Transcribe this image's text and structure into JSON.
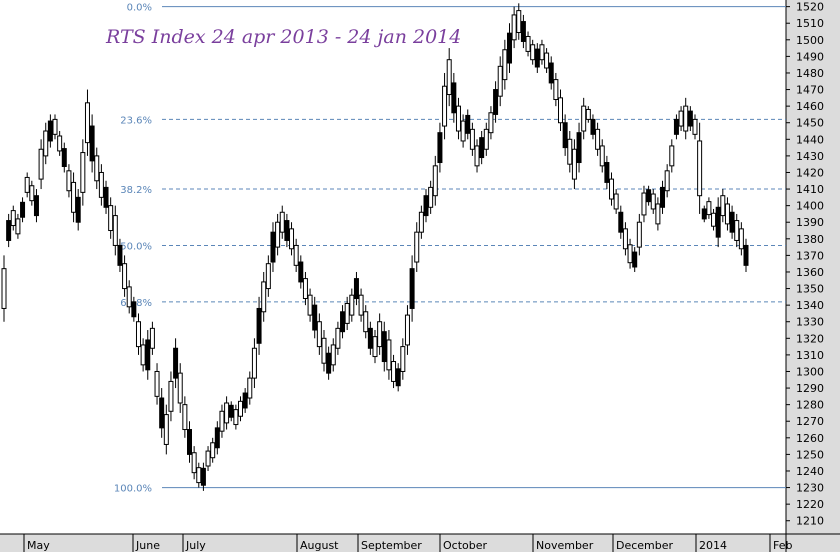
{
  "chart_data": {
    "type": "candlestick",
    "title": "RTS Index 24 apr 2013 - 24 jan 2014",
    "colors": {
      "background": "#ffffff",
      "axis_panel": "#dcdcdc",
      "candle": "#000000",
      "fib_line": "#5b86b8",
      "title": "#7a3f9d"
    },
    "y_axis": {
      "ylim": [
        1202,
        1524
      ],
      "ticks": [
        1210,
        1220,
        1230,
        1240,
        1250,
        1260,
        1270,
        1280,
        1290,
        1300,
        1310,
        1320,
        1330,
        1340,
        1350,
        1360,
        1370,
        1380,
        1390,
        1400,
        1410,
        1420,
        1430,
        1440,
        1450,
        1460,
        1470,
        1480,
        1490,
        1500,
        1510,
        1520
      ],
      "position": "right"
    },
    "x_axis": {
      "month_labels": [
        "May",
        "June",
        "July",
        "August",
        "September",
        "October",
        "November",
        "December",
        "2014",
        "Feb"
      ]
    },
    "fibonacci_levels": [
      {
        "label": "0.0%",
        "value": 1520
      },
      {
        "label": "23.6%",
        "value": 1452
      },
      {
        "label": "38.2%",
        "value": 1410
      },
      {
        "label": "50.0%",
        "value": 1376
      },
      {
        "label": "61.8%",
        "value": 1342
      },
      {
        "label": "100.0%",
        "value": 1230
      }
    ],
    "series": [
      {
        "points": [
          [
            1330,
            1370
          ],
          [
            1375,
            1395
          ],
          [
            1385,
            1400
          ],
          [
            1380,
            1395
          ],
          [
            1390,
            1405
          ],
          [
            1405,
            1420
          ],
          [
            1400,
            1415
          ],
          [
            1390,
            1410
          ],
          [
            1410,
            1440
          ],
          [
            1425,
            1450
          ],
          [
            1435,
            1455
          ],
          [
            1440,
            1455
          ],
          [
            1430,
            1445
          ],
          [
            1420,
            1438
          ],
          [
            1405,
            1425
          ],
          [
            1390,
            1420
          ],
          [
            1385,
            1410
          ],
          [
            1400,
            1440
          ],
          [
            1430,
            1470
          ],
          [
            1420,
            1455
          ],
          [
            1410,
            1435
          ],
          [
            1400,
            1425
          ],
          [
            1395,
            1415
          ],
          [
            1380,
            1405
          ],
          [
            1370,
            1400
          ],
          [
            1360,
            1380
          ],
          [
            1345,
            1370
          ],
          [
            1335,
            1355
          ],
          [
            1330,
            1345
          ],
          [
            1310,
            1335
          ],
          [
            1300,
            1320
          ],
          [
            1295,
            1325
          ],
          [
            1310,
            1330
          ],
          [
            1280,
            1305
          ],
          [
            1260,
            1290
          ],
          [
            1250,
            1280
          ],
          [
            1270,
            1300
          ],
          [
            1290,
            1320
          ],
          [
            1275,
            1305
          ],
          [
            1260,
            1285
          ],
          [
            1245,
            1270
          ],
          [
            1235,
            1255
          ],
          [
            1230,
            1245
          ],
          [
            1228,
            1245
          ],
          [
            1240,
            1255
          ],
          [
            1245,
            1260
          ],
          [
            1250,
            1270
          ],
          [
            1260,
            1280
          ],
          [
            1265,
            1285
          ],
          [
            1270,
            1282
          ],
          [
            1265,
            1280
          ],
          [
            1270,
            1285
          ],
          [
            1275,
            1290
          ],
          [
            1280,
            1300
          ],
          [
            1290,
            1320
          ],
          [
            1310,
            1345
          ],
          [
            1330,
            1360
          ],
          [
            1345,
            1370
          ],
          [
            1360,
            1390
          ],
          [
            1370,
            1395
          ],
          [
            1380,
            1400
          ],
          [
            1375,
            1395
          ],
          [
            1370,
            1390
          ],
          [
            1360,
            1380
          ],
          [
            1350,
            1370
          ],
          [
            1340,
            1360
          ],
          [
            1330,
            1350
          ],
          [
            1320,
            1345
          ],
          [
            1310,
            1335
          ],
          [
            1300,
            1325
          ],
          [
            1295,
            1315
          ],
          [
            1300,
            1320
          ],
          [
            1310,
            1330
          ],
          [
            1320,
            1340
          ],
          [
            1325,
            1345
          ],
          [
            1330,
            1350
          ],
          [
            1340,
            1360
          ],
          [
            1330,
            1350
          ],
          [
            1320,
            1340
          ],
          [
            1310,
            1330
          ],
          [
            1305,
            1325
          ],
          [
            1310,
            1335
          ],
          [
            1300,
            1330
          ],
          [
            1295,
            1325
          ],
          [
            1290,
            1310
          ],
          [
            1288,
            1305
          ],
          [
            1295,
            1320
          ],
          [
            1310,
            1340
          ],
          [
            1330,
            1370
          ],
          [
            1360,
            1390
          ],
          [
            1380,
            1400
          ],
          [
            1390,
            1410
          ],
          [
            1395,
            1415
          ],
          [
            1400,
            1430
          ],
          [
            1420,
            1450
          ],
          [
            1440,
            1480
          ],
          [
            1460,
            1495
          ],
          [
            1450,
            1480
          ],
          [
            1440,
            1465
          ],
          [
            1435,
            1455
          ],
          [
            1440,
            1458
          ],
          [
            1430,
            1450
          ],
          [
            1420,
            1440
          ],
          [
            1425,
            1445
          ],
          [
            1430,
            1450
          ],
          [
            1440,
            1460
          ],
          [
            1450,
            1475
          ],
          [
            1460,
            1490
          ],
          [
            1470,
            1500
          ],
          [
            1480,
            1510
          ],
          [
            1495,
            1520
          ],
          [
            1500,
            1522
          ],
          [
            1495,
            1515
          ],
          [
            1490,
            1505
          ],
          [
            1485,
            1500
          ],
          [
            1480,
            1498
          ],
          [
            1485,
            1500
          ],
          [
            1480,
            1495
          ],
          [
            1470,
            1490
          ],
          [
            1460,
            1480
          ],
          [
            1445,
            1470
          ],
          [
            1430,
            1455
          ],
          [
            1420,
            1445
          ],
          [
            1410,
            1440
          ],
          [
            1420,
            1450
          ],
          [
            1440,
            1465
          ],
          [
            1450,
            1460
          ],
          [
            1440,
            1455
          ],
          [
            1430,
            1450
          ],
          [
            1420,
            1440
          ],
          [
            1410,
            1430
          ],
          [
            1400,
            1420
          ],
          [
            1395,
            1410
          ],
          [
            1380,
            1400
          ],
          [
            1370,
            1390
          ],
          [
            1362,
            1380
          ],
          [
            1360,
            1375
          ],
          [
            1370,
            1395
          ],
          [
            1390,
            1412
          ],
          [
            1400,
            1412
          ],
          [
            1395,
            1410
          ],
          [
            1385,
            1405
          ],
          [
            1395,
            1415
          ],
          [
            1405,
            1425
          ],
          [
            1420,
            1440
          ],
          [
            1440,
            1455
          ],
          [
            1445,
            1460
          ],
          [
            1440,
            1465
          ],
          [
            1445,
            1460
          ],
          [
            1440,
            1455
          ],
          [
            1395,
            1450
          ],
          [
            1390,
            1400
          ],
          [
            1392,
            1405
          ],
          [
            1385,
            1398
          ],
          [
            1375,
            1405
          ],
          [
            1390,
            1410
          ],
          [
            1385,
            1405
          ],
          [
            1380,
            1400
          ],
          [
            1375,
            1395
          ],
          [
            1370,
            1390
          ],
          [
            1360,
            1380
          ]
        ]
      }
    ]
  }
}
